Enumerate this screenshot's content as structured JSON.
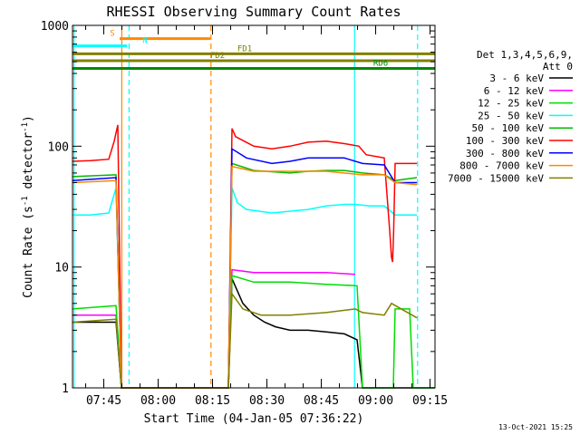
{
  "chart_data": {
    "type": "line",
    "title": "RHESSI Observing Summary Count Rates",
    "xlabel": "Start Time (04-Jan-05 07:36:22)",
    "ylabel_parts": [
      "Count Rate (s",
      "-1",
      " detector",
      "-1",
      ")"
    ],
    "x_unit": "minutes after 07:36:22 UT",
    "xlim": [
      0,
      100
    ],
    "ylim": [
      1,
      1000
    ],
    "yscale": "log",
    "x_ticks": [
      {
        "label": "07:45",
        "v": 8.63
      },
      {
        "label": "08:00",
        "v": 23.63
      },
      {
        "label": "08:15",
        "v": 38.63
      },
      {
        "label": "08:30",
        "v": 53.63
      },
      {
        "label": "08:45",
        "v": 68.63
      },
      {
        "label": "09:00",
        "v": 83.63
      },
      {
        "label": "09:15",
        "v": 98.63
      }
    ],
    "y_ticks": [
      {
        "label": "1",
        "v": 1
      },
      {
        "label": "10",
        "v": 10
      },
      {
        "label": "100",
        "v": 100
      },
      {
        "label": "1000",
        "v": 1000
      }
    ],
    "legend_header": [
      "Det 1,3,4,5,6,9,",
      "Att 0"
    ],
    "legend_position": "right",
    "series": [
      {
        "name": "3 - 6 keV",
        "color": "#000000",
        "x": [
          0,
          12,
          13.5,
          43,
          44,
          47,
          50,
          53,
          56,
          60,
          65,
          70,
          75,
          78.5,
          80,
          100
        ],
        "y": [
          3.5,
          3.5,
          1,
          1,
          8,
          5,
          4,
          3.5,
          3.2,
          3,
          3,
          2.9,
          2.8,
          2.5,
          1,
          1
        ]
      },
      {
        "name": "6 - 12 keV",
        "color": "#ff00ff",
        "x": [
          0,
          12,
          13.5,
          43,
          44,
          50,
          60,
          70,
          78
        ],
        "y": [
          4,
          4,
          1,
          1,
          9.5,
          9,
          9,
          9,
          8.7
        ]
      },
      {
        "name": "12 - 25 keV",
        "color": "#00dd00",
        "x": [
          0,
          12,
          13.5,
          43,
          44,
          50,
          60,
          70,
          78.5,
          80,
          88.5,
          89,
          93,
          94,
          95,
          97,
          100
        ],
        "y": [
          4.5,
          4.8,
          1,
          1,
          8.5,
          7.5,
          7.5,
          7.2,
          7,
          1,
          1,
          4.5,
          4.5,
          1,
          1,
          1,
          1
        ]
      },
      {
        "name": "25 - 50 keV",
        "color": "#00ffff",
        "x": [
          0,
          5,
          10,
          12,
          13.5,
          43,
          44,
          45.5,
          48,
          55,
          65,
          70,
          75,
          78,
          82,
          86,
          89,
          93,
          95
        ],
        "y": [
          27,
          27,
          28,
          45,
          1,
          1,
          45,
          34,
          30,
          28,
          30,
          32,
          33,
          33,
          32,
          32,
          27,
          27,
          27
        ]
      },
      {
        "name": "50 - 100 keV",
        "color": "#00bb00",
        "x": [
          0,
          12,
          13.5,
          43,
          44,
          50,
          60,
          65,
          70,
          75,
          80,
          86,
          89,
          95
        ],
        "y": [
          56,
          58,
          1,
          1,
          72,
          63,
          60,
          62,
          63,
          63,
          60,
          58,
          52,
          55
        ]
      },
      {
        "name": "100 - 300 keV",
        "color": "#ff0000",
        "x": [
          0,
          5,
          10,
          11.5,
          12.5,
          13.5,
          43,
          44,
          45,
          50,
          55,
          60,
          65,
          70,
          75,
          79,
          81,
          86,
          87.5,
          88,
          88.3,
          88.6,
          89,
          95
        ],
        "y": [
          75,
          76,
          78,
          110,
          150,
          1,
          1,
          140,
          120,
          100,
          95,
          100,
          108,
          110,
          105,
          100,
          85,
          80,
          20,
          12,
          11,
          20,
          72,
          72
        ]
      },
      {
        "name": "300 - 800 keV",
        "color": "#0000ff",
        "x": [
          0,
          12,
          13.5,
          43,
          44,
          48,
          55,
          60,
          65,
          70,
          75,
          80,
          86,
          89,
          95
        ],
        "y": [
          52,
          55,
          1,
          1,
          95,
          80,
          72,
          75,
          80,
          80,
          80,
          72,
          70,
          50,
          50
        ]
      },
      {
        "name": "800 - 7000 keV",
        "color": "#ff8800",
        "x": [
          0,
          12,
          13.5,
          43,
          44,
          50,
          60,
          70,
          80,
          86,
          89,
          95
        ],
        "y": [
          50,
          52,
          1,
          1,
          68,
          62,
          62,
          62,
          58,
          58,
          50,
          48
        ]
      },
      {
        "name": "7000 - 15000 keV",
        "color": "#808000",
        "x": [
          0,
          12,
          13.5,
          43,
          44,
          47,
          52,
          60,
          70,
          78,
          80,
          86,
          88,
          95
        ],
        "y": [
          3.5,
          3.7,
          1,
          1,
          6,
          4.5,
          4,
          4,
          4.2,
          4.5,
          4.2,
          4,
          5,
          3.8
        ]
      }
    ],
    "state_bars": [
      {
        "label": "S",
        "color": "#ff8800",
        "x0": 13,
        "x1": 38,
        "y": 776
      },
      {
        "label": "N",
        "color": "#00ffff",
        "x0": 0,
        "x1": 15,
        "y": 676
      },
      {
        "label": "FD1",
        "color": "#808000",
        "x0": 0,
        "x1": 100,
        "y": 582
      },
      {
        "label": "FD2",
        "color": "#808000",
        "x0": 0,
        "x1": 100,
        "y": 510
      },
      {
        "label": "RD6",
        "color": "#008800",
        "x0": 0,
        "x1": 100,
        "y": 440
      }
    ],
    "vlines": [
      {
        "x": 13.6,
        "color": "#ff8800",
        "style": "solid"
      },
      {
        "x": 38.2,
        "color": "#ff8800",
        "style": "dashed"
      },
      {
        "x": 77.8,
        "color": "#00ffff",
        "style": "solid"
      },
      {
        "x": 15.6,
        "color": "#00ffff",
        "style": "dashed"
      },
      {
        "x": 95.2,
        "color": "#00ffff",
        "style": "dashed"
      },
      {
        "x": 0.4,
        "color": "#00ffff",
        "style": "solid"
      }
    ],
    "footer_date": "13-Oct-2021 15:25"
  }
}
